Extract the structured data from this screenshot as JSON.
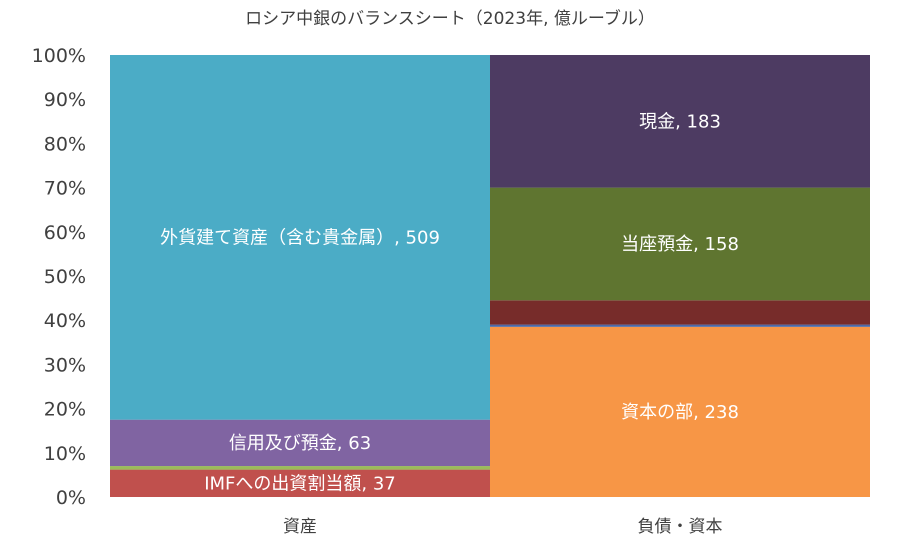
{
  "chart_data": {
    "type": "bar",
    "subtype": "stacked-100-percent",
    "title": "ロシア中銀のバランスシート（2023年, 億ルーブル）",
    "categories": [
      "資産",
      "負債・資本"
    ],
    "yticks": [
      "0%",
      "10%",
      "20%",
      "30%",
      "40%",
      "50%",
      "60%",
      "70%",
      "80%",
      "90%",
      "100%"
    ],
    "ylim": [
      0,
      100
    ],
    "grid": false,
    "columns": [
      {
        "category": "資産",
        "segments": [
          {
            "label": "IMFへの出資割当額, 37",
            "share": 6.2,
            "color": "#C0504D"
          },
          {
            "label": "",
            "share": 0.8,
            "color": "#9BBB59"
          },
          {
            "label": "信用及び預金, 63",
            "share": 10.5,
            "color": "#8064A2"
          },
          {
            "label": "外貨建て資産（含む貴金属）, 509",
            "share": 82.5,
            "color": "#4BACC6"
          }
        ]
      },
      {
        "category": "負債・資本",
        "segments": [
          {
            "label": "資本の部, 238",
            "share": 38.5,
            "color": "#F79646"
          },
          {
            "label": "",
            "share": 0.5,
            "color": "#4A69A8"
          },
          {
            "label": "",
            "share": 5.5,
            "color": "#772C2A"
          },
          {
            "label": "当座預金, 158",
            "share": 25.5,
            "color": "#5F7530"
          },
          {
            "label": "現金, 183",
            "share": 30.0,
            "color": "#4D3B62"
          }
        ]
      }
    ]
  }
}
